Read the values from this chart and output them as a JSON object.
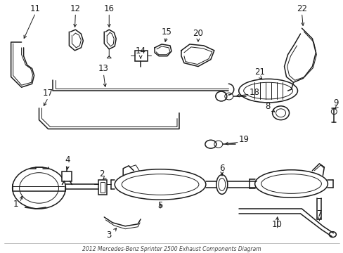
{
  "title": "2012 Mercedes-Benz Sprinter 2500 Exhaust Components Diagram",
  "bg_color": "#ffffff",
  "line_color": "#1a1a1a",
  "figsize": [
    4.89,
    3.6
  ],
  "dpi": 100
}
